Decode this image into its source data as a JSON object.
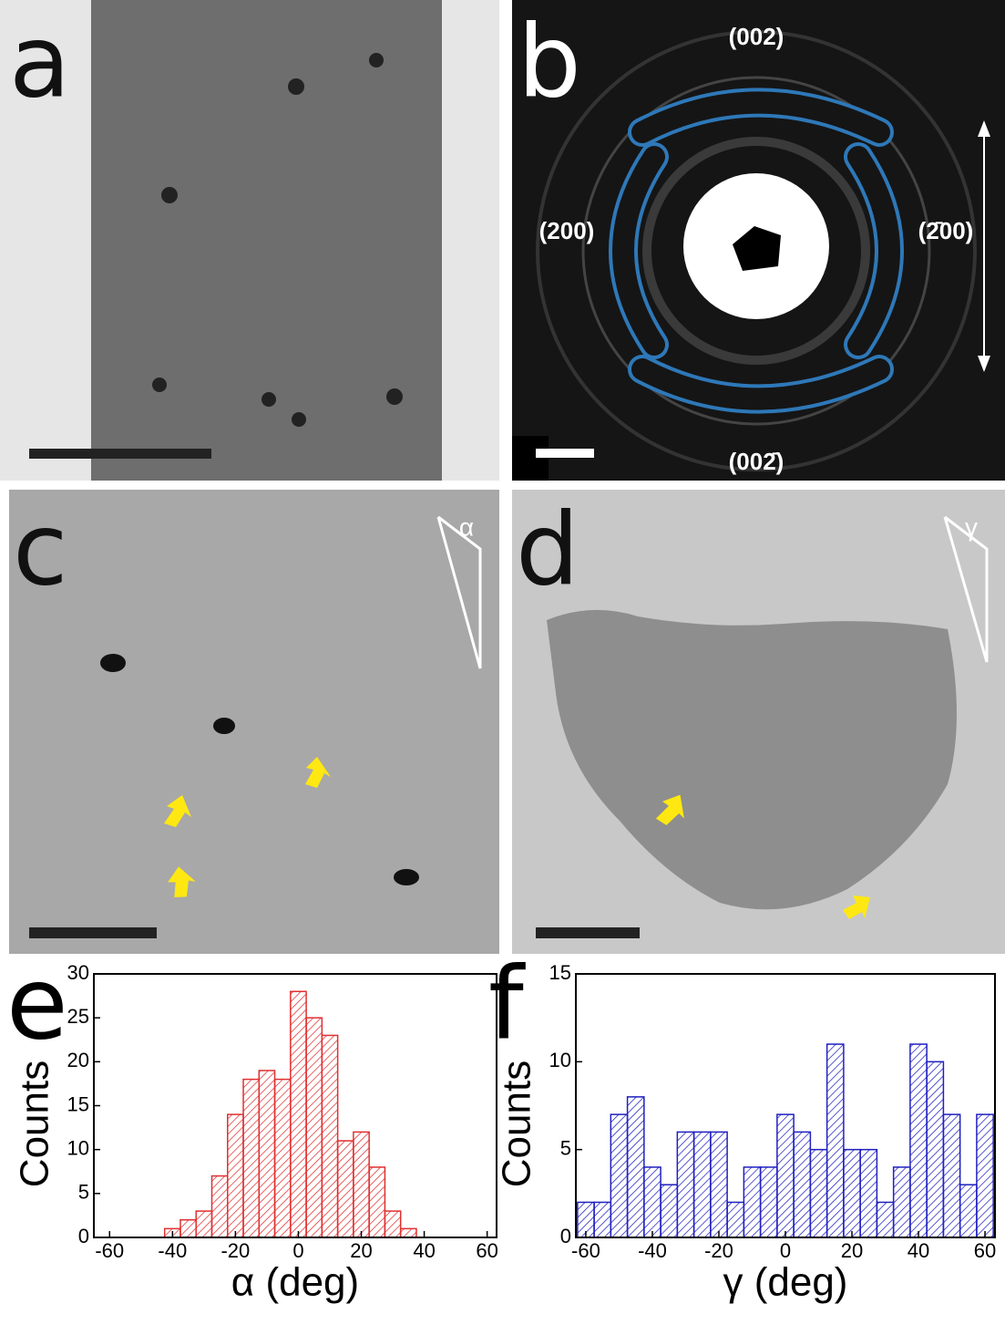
{
  "panels": [
    {
      "label": "a"
    },
    {
      "label": "b"
    },
    {
      "label": "c",
      "angle_symbol": "α"
    },
    {
      "label": "d",
      "angle_symbol": "γ"
    }
  ],
  "diffraction_labels": [
    "(002)",
    "(200)",
    "(2̄00)",
    "(002̄)"
  ],
  "chart_data": [
    {
      "type": "histogram",
      "panel_label": "e",
      "x_label": "α (deg)",
      "y_label": "Counts",
      "color": "#e03030",
      "bins": [
        -42.5,
        -37.5,
        -32.5,
        -27.5,
        -22.5,
        -17.5,
        -12.5,
        -7.5,
        -2.5,
        2.5,
        7.5,
        12.5,
        17.5,
        22.5,
        27.5,
        32.5,
        37.5
      ],
      "values": [
        1,
        2,
        3,
        7,
        14,
        18,
        19,
        18,
        28,
        25,
        23,
        11,
        12,
        8,
        3,
        1
      ],
      "xlim": [
        -65,
        63
      ],
      "xticks": [
        -60,
        -40,
        -20,
        0,
        20,
        40,
        60
      ],
      "ylim": [
        0,
        30
      ],
      "yticks": [
        0,
        5,
        10,
        15,
        20,
        25,
        30
      ]
    },
    {
      "type": "histogram",
      "panel_label": "f",
      "x_label": "γ (deg)",
      "y_label": "Counts",
      "color": "#2020c0",
      "bins": [
        -62.5,
        -57.5,
        -52.5,
        -47.5,
        -42.5,
        -37.5,
        -32.5,
        -27.5,
        -22.5,
        -17.5,
        -12.5,
        -7.5,
        -2.5,
        2.5,
        7.5,
        12.5,
        17.5,
        22.5,
        27.5,
        32.5,
        37.5,
        42.5,
        47.5,
        52.5,
        57.5,
        62.5
      ],
      "values": [
        2,
        2,
        7,
        8,
        4,
        3,
        6,
        6,
        6,
        2,
        4,
        4,
        7,
        6,
        5,
        11,
        5,
        5,
        2,
        4,
        11,
        10,
        7,
        3,
        7
      ],
      "xlim": [
        -63,
        63
      ],
      "xticks": [
        -60,
        -40,
        -20,
        0,
        20,
        40,
        60
      ],
      "ylim": [
        0,
        15
      ],
      "yticks": [
        0,
        5,
        10,
        15
      ]
    }
  ]
}
